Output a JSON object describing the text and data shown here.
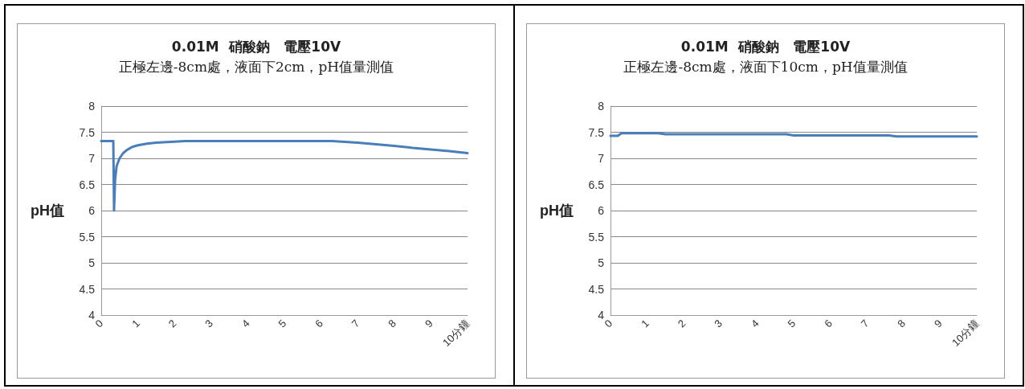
{
  "chart_data": [
    {
      "type": "line",
      "title": "0.01M  硝酸鈉   電壓10V",
      "subtitle": "正極左邊-8cm處，液面下2cm，pH值量測值",
      "ylabel": "pH值",
      "xlim": [
        0,
        10
      ],
      "ylim": [
        4,
        8
      ],
      "xticks": [
        0,
        1,
        2,
        3,
        4,
        5,
        6,
        7,
        8,
        9,
        {
          "value": 10,
          "label": "10分鐘"
        }
      ],
      "yticks": [
        4,
        4.5,
        5,
        5.5,
        6,
        6.5,
        7,
        7.5,
        8
      ],
      "grid": "y",
      "marker": "none",
      "line_style": "solid",
      "series": [
        {
          "color": "#4a7ebb",
          "x": [
            0,
            0.33,
            0.35,
            0.38,
            0.42,
            0.5,
            0.6,
            0.7,
            0.85,
            1,
            1.25,
            1.5,
            2,
            2.3,
            3,
            4,
            5,
            6,
            6.3,
            7,
            7.5,
            8,
            8.5,
            9,
            9.5,
            10
          ],
          "values": [
            7.33,
            7.33,
            6.0,
            6.6,
            6.85,
            7.0,
            7.1,
            7.16,
            7.22,
            7.25,
            7.28,
            7.3,
            7.32,
            7.33,
            7.33,
            7.33,
            7.33,
            7.33,
            7.33,
            7.3,
            7.27,
            7.24,
            7.2,
            7.17,
            7.14,
            7.1
          ]
        }
      ]
    },
    {
      "type": "line",
      "title": "0.01M  硝酸鈉   電壓10V",
      "subtitle": "正極左邊-8cm處，液面下10cm，pH值量測值",
      "ylabel": "pH值",
      "xlim": [
        0,
        10
      ],
      "ylim": [
        4,
        8
      ],
      "xticks": [
        0,
        1,
        2,
        3,
        4,
        5,
        6,
        7,
        8,
        9,
        {
          "value": 10,
          "label": "10分鐘"
        }
      ],
      "yticks": [
        4,
        4.5,
        5,
        5.5,
        6,
        6.5,
        7,
        7.5,
        8
      ],
      "grid": "y",
      "marker": "none",
      "line_style": "solid",
      "series": [
        {
          "color": "#4a7ebb",
          "x": [
            0,
            0.2,
            0.3,
            1.3,
            1.5,
            4.8,
            5,
            7.6,
            7.8,
            10
          ],
          "values": [
            7.43,
            7.43,
            7.48,
            7.48,
            7.46,
            7.46,
            7.44,
            7.44,
            7.42,
            7.42
          ]
        }
      ]
    }
  ]
}
